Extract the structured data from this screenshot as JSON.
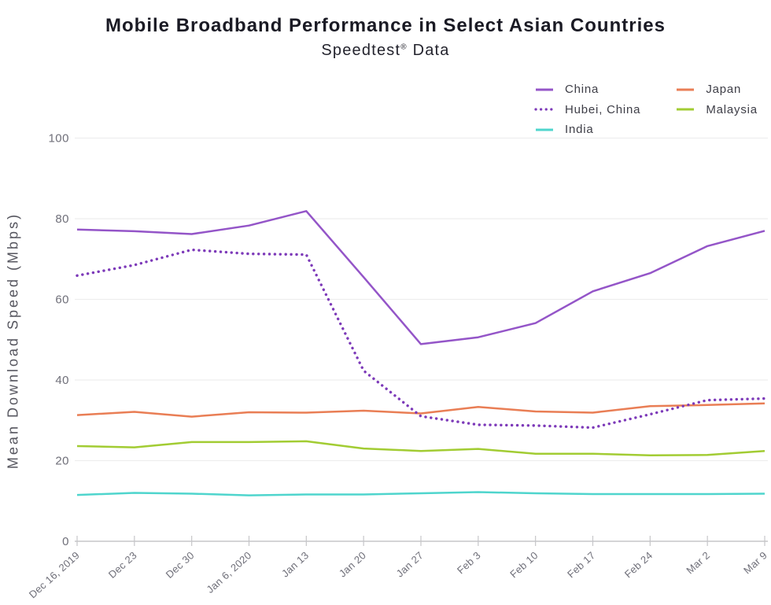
{
  "title": "Mobile Broadband Performance in Select Asian Countries",
  "subtitle": {
    "brand": "Speedtest",
    "mark": "®",
    "suffix": " Data"
  },
  "chart_data": {
    "type": "line",
    "title": "Mobile Broadband Performance in Select Asian Countries",
    "subtitle": "Speedtest® Data",
    "xlabel": "",
    "ylabel": "Mean Download Speed (Mbps)",
    "ylim": [
      0,
      100
    ],
    "yticks": [
      0,
      20,
      40,
      60,
      80,
      100
    ],
    "grid": true,
    "legend_position": "top-right",
    "legend_columns": [
      [
        "China",
        "Hubei, China",
        "India"
      ],
      [
        "Japan",
        "Malaysia"
      ]
    ],
    "x": [
      "Dec 16, 2019",
      "Dec 23",
      "Dec 30",
      "Jan 6, 2020",
      "Jan 13",
      "Jan 20",
      "Jan 27",
      "Feb 3",
      "Feb 10",
      "Feb 17",
      "Feb 24",
      "Mar 2",
      "Mar 9"
    ],
    "series": [
      {
        "name": "China",
        "style": "solid",
        "color": "#9455c8",
        "values": [
          77.3,
          76.9,
          76.2,
          78.3,
          81.9,
          65.5,
          48.9,
          50.6,
          54.1,
          62.0,
          66.5,
          73.2,
          77.0
        ]
      },
      {
        "name": "Hubei, China",
        "style": "dotted",
        "color": "#7d3ab9",
        "values": [
          65.9,
          68.5,
          72.3,
          71.3,
          71.1,
          42.3,
          31.0,
          28.9,
          28.7,
          28.2,
          31.5,
          35.0,
          35.4
        ]
      },
      {
        "name": "India",
        "style": "solid",
        "color": "#4fd5cd",
        "values": [
          11.5,
          12.0,
          11.8,
          11.4,
          11.6,
          11.6,
          11.9,
          12.2,
          11.9,
          11.7,
          11.7,
          11.7,
          11.8
        ]
      },
      {
        "name": "Japan",
        "style": "solid",
        "color": "#e97e55",
        "values": [
          31.3,
          32.1,
          30.9,
          32.0,
          31.9,
          32.4,
          31.7,
          33.3,
          32.2,
          31.9,
          33.5,
          33.8,
          34.2
        ]
      },
      {
        "name": "Malaysia",
        "style": "solid",
        "color": "#a2cc33",
        "values": [
          23.6,
          23.3,
          24.6,
          24.6,
          24.8,
          23.0,
          22.4,
          22.9,
          21.7,
          21.7,
          21.3,
          21.4,
          22.4
        ]
      }
    ],
    "colors": {
      "grid": "#ededee",
      "axis": "#c6c6c9",
      "tick_text": "#6f6f79"
    }
  }
}
